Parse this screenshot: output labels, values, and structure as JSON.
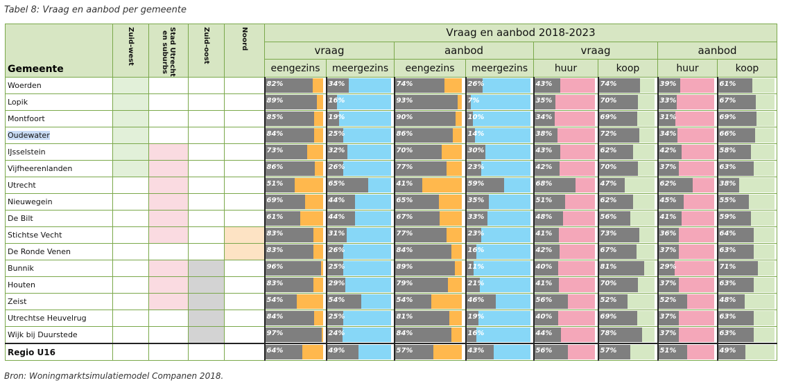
{
  "caption": "Tabel 8: Vraag en aanbod per gemeente",
  "source": "Bron: Woningmarktsimulatiemodel Companen 2018.",
  "header": {
    "group": "Vraag en aanbod 2018-2023",
    "gemeente": "Gemeente",
    "regions": [
      "Zuid-west",
      "Stad Utrecht en suburbs",
      "Zuid-oost",
      "Noord"
    ],
    "sub1": [
      "vraag",
      "aanbod",
      "vraag",
      "aanbod"
    ],
    "sub2": [
      "eengezins",
      "meergezins",
      "eengezins",
      "meergezins",
      "huur",
      "koop",
      "huur",
      "koop"
    ]
  },
  "colors": {
    "grey": "#7f7f7f",
    "eengezins_rest": "#ffb84d",
    "meergezins_rest": "#87d7f7",
    "huur_rest": "#f4a7b9",
    "koop_rest": "#d6e8c4",
    "region_zuidwest": "#e2f0d9",
    "region_stad": "#fadbe1",
    "region_zuidoost": "#d3d3d3",
    "region_noord": "#fde3c4"
  },
  "rows": [
    {
      "name": "Woerden",
      "regions": [
        1,
        0,
        0,
        0
      ],
      "values": [
        "82%",
        "34%",
        "74%",
        "26%",
        "43%",
        "74%",
        "39%",
        "61%"
      ]
    },
    {
      "name": "Lopik",
      "regions": [
        1,
        0,
        0,
        0
      ],
      "values": [
        "89%",
        "16%",
        "93%",
        "7%",
        "35%",
        "70%",
        "33%",
        "67%"
      ]
    },
    {
      "name": "Montfoort",
      "regions": [
        1,
        0,
        0,
        0
      ],
      "values": [
        "85%",
        "19%",
        "90%",
        "10%",
        "34%",
        "69%",
        "31%",
        "69%"
      ]
    },
    {
      "name": "Oudewater",
      "regions": [
        1,
        0,
        0,
        0
      ],
      "values": [
        "84%",
        "25%",
        "86%",
        "14%",
        "38%",
        "72%",
        "34%",
        "66%"
      ]
    },
    {
      "name": "IJsselstein",
      "regions": [
        1,
        1,
        0,
        0
      ],
      "values": [
        "73%",
        "32%",
        "70%",
        "30%",
        "43%",
        "62%",
        "42%",
        "58%"
      ]
    },
    {
      "name": "Vijfheerenlanden",
      "regions": [
        1,
        1,
        0,
        0
      ],
      "values": [
        "86%",
        "26%",
        "77%",
        "23%",
        "42%",
        "70%",
        "37%",
        "63%"
      ]
    },
    {
      "name": "Utrecht",
      "regions": [
        0,
        1,
        0,
        0
      ],
      "values": [
        "51%",
        "65%",
        "41%",
        "59%",
        "68%",
        "47%",
        "62%",
        "38%"
      ]
    },
    {
      "name": "Nieuwegein",
      "regions": [
        0,
        1,
        0,
        0
      ],
      "values": [
        "69%",
        "44%",
        "65%",
        "35%",
        "51%",
        "62%",
        "45%",
        "55%"
      ]
    },
    {
      "name": "De Bilt",
      "regions": [
        0,
        1,
        0,
        0
      ],
      "values": [
        "61%",
        "44%",
        "67%",
        "33%",
        "48%",
        "56%",
        "41%",
        "59%"
      ]
    },
    {
      "name": "Stichtse Vecht",
      "regions": [
        0,
        1,
        0,
        1
      ],
      "values": [
        "83%",
        "31%",
        "77%",
        "23%",
        "41%",
        "73%",
        "36%",
        "64%"
      ]
    },
    {
      "name": "De Ronde Venen",
      "regions": [
        0,
        0,
        0,
        1
      ],
      "values": [
        "83%",
        "26%",
        "84%",
        "16%",
        "42%",
        "67%",
        "37%",
        "63%"
      ]
    },
    {
      "name": "Bunnik",
      "regions": [
        0,
        1,
        1,
        0
      ],
      "values": [
        "96%",
        "25%",
        "89%",
        "11%",
        "40%",
        "81%",
        "29%",
        "71%"
      ]
    },
    {
      "name": "Houten",
      "regions": [
        0,
        1,
        1,
        0
      ],
      "values": [
        "83%",
        "29%",
        "79%",
        "21%",
        "41%",
        "70%",
        "37%",
        "63%"
      ]
    },
    {
      "name": "Zeist",
      "regions": [
        0,
        1,
        1,
        0
      ],
      "values": [
        "54%",
        "54%",
        "54%",
        "46%",
        "56%",
        "52%",
        "52%",
        "48%"
      ]
    },
    {
      "name": "Utrechtse Heuvelrug",
      "regions": [
        0,
        0,
        1,
        0
      ],
      "values": [
        "84%",
        "25%",
        "81%",
        "19%",
        "40%",
        "69%",
        "37%",
        "63%"
      ]
    },
    {
      "name": "Wijk bij Duurstede",
      "regions": [
        0,
        0,
        1,
        0
      ],
      "values": [
        "97%",
        "24%",
        "84%",
        "16%",
        "44%",
        "78%",
        "37%",
        "63%"
      ]
    }
  ],
  "total": {
    "name": "Regio U16",
    "values": [
      "64%",
      "49%",
      "57%",
      "43%",
      "56%",
      "57%",
      "51%",
      "49%"
    ]
  }
}
